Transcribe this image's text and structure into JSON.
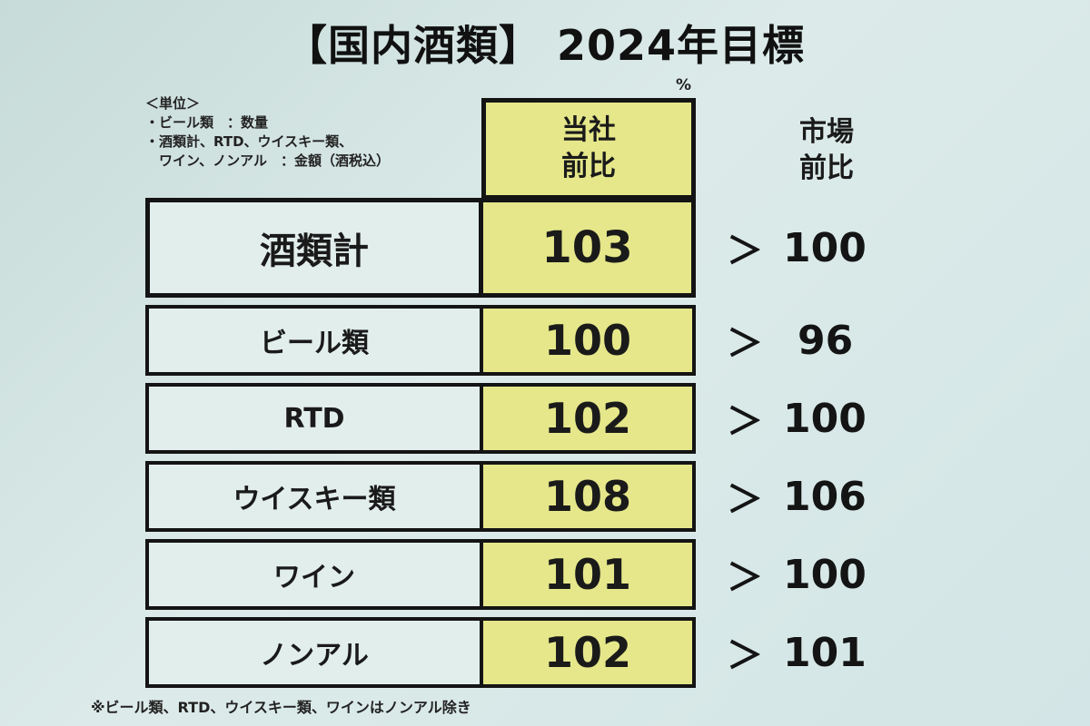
{
  "title": "【国内酒類】 2024年目標",
  "units": {
    "heading": "＜単位＞",
    "lines": [
      "・ビール類　：数量",
      "・酒類計、RTD、ウイスキー類、",
      "　ワイン、ノンアル　：金額（酒税込）"
    ]
  },
  "percent_mark": "%",
  "headers": {
    "company": [
      "当社",
      "前比"
    ],
    "market": [
      "市場",
      "前比"
    ]
  },
  "rows": [
    {
      "label": "酒類計",
      "company": "103",
      "market": "100"
    },
    {
      "label": "ビール類",
      "company": "100",
      "market": "96"
    },
    {
      "label": "RTD",
      "company": "102",
      "market": "100"
    },
    {
      "label": "ウイスキー類",
      "company": "108",
      "market": "106"
    },
    {
      "label": "ワイン",
      "company": "101",
      "market": "100"
    },
    {
      "label": "ノンアル",
      "company": "102",
      "market": "101"
    }
  ],
  "comparator": "＞",
  "footnote": "※ビール類、RTD、ウイスキー類、ワインはノンアル除き",
  "colors": {
    "highlight": "#e5e78a",
    "background": "#d3e5e6",
    "border": "#141414"
  }
}
